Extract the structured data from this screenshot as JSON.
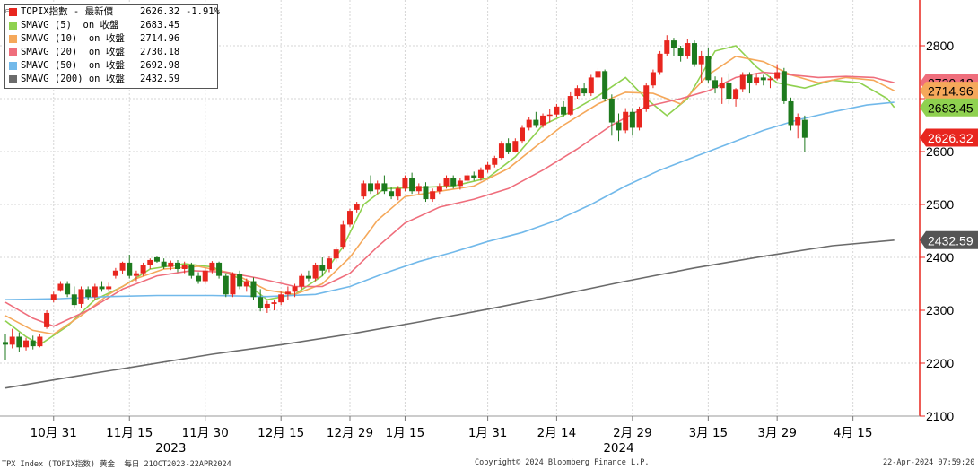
{
  "legend": {
    "items": [
      {
        "name": "TOPIX指數 - 最新價",
        "value": "2626.32",
        "change": "-1.91%",
        "color": "#e8261f"
      },
      {
        "name": "SMAVG (5)  on 收盤",
        "value": "2683.45",
        "color": "#8fd14f"
      },
      {
        "name": "SMAVG (10)  on 收盤",
        "value": "2714.96",
        "color": "#f5a85a"
      },
      {
        "name": "SMAVG (20)  on 收盤",
        "value": "2730.18",
        "color": "#ef6e7c"
      },
      {
        "name": "SMAVG (50)  on 收盤",
        "value": "2692.98",
        "color": "#72b9ea"
      },
      {
        "name": "SMAVG (200) on 收盤",
        "value": "2432.59",
        "color": "#6b6b6b"
      }
    ]
  },
  "footer": {
    "left": "TPX Index (TOPIX指数) 黄金  每日 21OCT2023-22APR2024",
    "center": "Copyright© 2024 Bloomberg Finance L.P.",
    "right": "22-Apr-2024 07:59:20"
  },
  "chart_data": {
    "type": "candlestick",
    "ylim": [
      2080,
      2880
    ],
    "yticks": [
      2100,
      2200,
      2300,
      2400,
      2500,
      2600,
      2700,
      2800
    ],
    "grid": true,
    "legend_position": "top-left",
    "axis_color": "#e8261f",
    "up_color": "#e8261f",
    "down_color": "#1e7a1e",
    "x_ticks": [
      {
        "label": "10月 31",
        "i": 7
      },
      {
        "label": "11月 15",
        "i": 18
      },
      {
        "label": "11月 30",
        "i": 29
      },
      {
        "label": "12月 15",
        "i": 40
      },
      {
        "label": "12月 29",
        "i": 50
      },
      {
        "label": "1月 15",
        "i": 58
      },
      {
        "label": "1月 31",
        "i": 70
      },
      {
        "label": "2月 14",
        "i": 80
      },
      {
        "label": "2月 29",
        "i": 91
      },
      {
        "label": "3月 15",
        "i": 102
      },
      {
        "label": "3月 29",
        "i": 112
      },
      {
        "label": "4月 15",
        "i": 123
      }
    ],
    "year_labels": [
      {
        "label": "2023",
        "i": 24
      },
      {
        "label": "2024",
        "i": 89
      }
    ],
    "last_labels": [
      {
        "value": "2730.18",
        "y": 2730.18,
        "color": "#ef6e7c",
        "text_color": "#000000"
      },
      {
        "value": "2714.96",
        "y": 2714.96,
        "color": "#f5a85a",
        "text_color": "#000000"
      },
      {
        "value": "2683.45",
        "y": 2683.45,
        "color": "#8fd14f",
        "text_color": "#000000"
      },
      {
        "value": "2626.32",
        "y": 2626.32,
        "color": "#e8261f",
        "text_color": "#ffffff"
      },
      {
        "value": "2432.59",
        "y": 2432.59,
        "color": "#555555",
        "text_color": "#ffffff"
      }
    ],
    "candles": [
      [
        2240,
        2255,
        2205,
        2235
      ],
      [
        2235,
        2265,
        2228,
        2250
      ],
      [
        2250,
        2258,
        2222,
        2230
      ],
      [
        2230,
        2248,
        2224,
        2243
      ],
      [
        2243,
        2252,
        2226,
        2232
      ],
      [
        2232,
        2255,
        2230,
        2250
      ],
      [
        2268,
        2300,
        2265,
        2295
      ],
      [
        2320,
        2335,
        2315,
        2330
      ],
      [
        2338,
        2355,
        2335,
        2350
      ],
      [
        2350,
        2355,
        2325,
        2330
      ],
      [
        2330,
        2345,
        2305,
        2310
      ],
      [
        2312,
        2345,
        2305,
        2340
      ],
      [
        2340,
        2345,
        2320,
        2325
      ],
      [
        2325,
        2350,
        2320,
        2345
      ],
      [
        2345,
        2355,
        2335,
        2340
      ],
      [
        2340,
        2352,
        2335,
        2345
      ],
      [
        2365,
        2380,
        2360,
        2375
      ],
      [
        2375,
        2392,
        2368,
        2390
      ],
      [
        2390,
        2405,
        2360,
        2365
      ],
      [
        2365,
        2375,
        2355,
        2370
      ],
      [
        2370,
        2390,
        2365,
        2385
      ],
      [
        2385,
        2398,
        2378,
        2395
      ],
      [
        2400,
        2403,
        2390,
        2392
      ],
      [
        2392,
        2398,
        2378,
        2382
      ],
      [
        2382,
        2394,
        2376,
        2390
      ],
      [
        2390,
        2395,
        2372,
        2378
      ],
      [
        2378,
        2392,
        2370,
        2386
      ],
      [
        2386,
        2390,
        2360,
        2365
      ],
      [
        2365,
        2372,
        2350,
        2355
      ],
      [
        2355,
        2380,
        2350,
        2375
      ],
      [
        2375,
        2393,
        2370,
        2390
      ],
      [
        2390,
        2392,
        2360,
        2365
      ],
      [
        2365,
        2368,
        2325,
        2330
      ],
      [
        2330,
        2372,
        2325,
        2368
      ],
      [
        2368,
        2375,
        2340,
        2345
      ],
      [
        2345,
        2360,
        2335,
        2355
      ],
      [
        2355,
        2362,
        2320,
        2325
      ],
      [
        2325,
        2340,
        2298,
        2305
      ],
      [
        2305,
        2318,
        2295,
        2312
      ],
      [
        2312,
        2320,
        2300,
        2315
      ],
      [
        2315,
        2335,
        2310,
        2330
      ],
      [
        2330,
        2345,
        2320,
        2335
      ],
      [
        2335,
        2350,
        2325,
        2345
      ],
      [
        2345,
        2370,
        2340,
        2365
      ],
      [
        2365,
        2375,
        2355,
        2360
      ],
      [
        2360,
        2390,
        2355,
        2385
      ],
      [
        2385,
        2400,
        2365,
        2375
      ],
      [
        2378,
        2402,
        2372,
        2398
      ],
      [
        2398,
        2420,
        2392,
        2415
      ],
      [
        2420,
        2470,
        2415,
        2462
      ],
      [
        2462,
        2492,
        2458,
        2488
      ],
      [
        2490,
        2505,
        2485,
        2500
      ],
      [
        2515,
        2545,
        2510,
        2540
      ],
      [
        2540,
        2555,
        2520,
        2525
      ],
      [
        2528,
        2545,
        2520,
        2540
      ],
      [
        2540,
        2555,
        2520,
        2525
      ],
      [
        2525,
        2532,
        2510,
        2515
      ],
      [
        2515,
        2535,
        2508,
        2530
      ],
      [
        2530,
        2555,
        2525,
        2550
      ],
      [
        2550,
        2560,
        2520,
        2525
      ],
      [
        2525,
        2540,
        2520,
        2535
      ],
      [
        2535,
        2542,
        2505,
        2510
      ],
      [
        2510,
        2530,
        2505,
        2525
      ],
      [
        2525,
        2540,
        2520,
        2535
      ],
      [
        2535,
        2555,
        2530,
        2550
      ],
      [
        2550,
        2555,
        2530,
        2535
      ],
      [
        2535,
        2550,
        2528,
        2545
      ],
      [
        2545,
        2560,
        2540,
        2555
      ],
      [
        2555,
        2562,
        2545,
        2550
      ],
      [
        2550,
        2570,
        2545,
        2565
      ],
      [
        2565,
        2580,
        2560,
        2575
      ],
      [
        2575,
        2592,
        2570,
        2588
      ],
      [
        2588,
        2620,
        2585,
        2615
      ],
      [
        2615,
        2625,
        2595,
        2600
      ],
      [
        2600,
        2625,
        2598,
        2620
      ],
      [
        2620,
        2650,
        2615,
        2645
      ],
      [
        2645,
        2665,
        2640,
        2660
      ],
      [
        2660,
        2675,
        2645,
        2650
      ],
      [
        2650,
        2672,
        2645,
        2668
      ],
      [
        2668,
        2680,
        2655,
        2670
      ],
      [
        2670,
        2690,
        2665,
        2685
      ],
      [
        2685,
        2695,
        2665,
        2670
      ],
      [
        2670,
        2712,
        2668,
        2705
      ],
      [
        2705,
        2725,
        2700,
        2720
      ],
      [
        2720,
        2730,
        2705,
        2710
      ],
      [
        2710,
        2745,
        2705,
        2740
      ],
      [
        2740,
        2758,
        2732,
        2752
      ],
      [
        2752,
        2755,
        2695,
        2700
      ],
      [
        2700,
        2708,
        2630,
        2655
      ],
      [
        2655,
        2672,
        2620,
        2640
      ],
      [
        2640,
        2682,
        2635,
        2675
      ],
      [
        2675,
        2682,
        2630,
        2645
      ],
      [
        2645,
        2685,
        2640,
        2680
      ],
      [
        2680,
        2730,
        2675,
        2725
      ],
      [
        2725,
        2755,
        2720,
        2750
      ],
      [
        2750,
        2790,
        2745,
        2785
      ],
      [
        2785,
        2820,
        2780,
        2810
      ],
      [
        2810,
        2815,
        2780,
        2795
      ],
      [
        2795,
        2800,
        2770,
        2780
      ],
      [
        2780,
        2812,
        2775,
        2805
      ],
      [
        2805,
        2810,
        2760,
        2765
      ],
      [
        2765,
        2790,
        2730,
        2780
      ],
      [
        2780,
        2795,
        2730,
        2735
      ],
      [
        2735,
        2742,
        2710,
        2720
      ],
      [
        2720,
        2740,
        2690,
        2730
      ],
      [
        2730,
        2748,
        2690,
        2700
      ],
      [
        2700,
        2720,
        2685,
        2718
      ],
      [
        2718,
        2750,
        2712,
        2745
      ],
      [
        2745,
        2750,
        2710,
        2730
      ],
      [
        2730,
        2748,
        2725,
        2740
      ],
      [
        2740,
        2745,
        2725,
        2735
      ],
      [
        2735,
        2742,
        2720,
        2738
      ],
      [
        2738,
        2765,
        2735,
        2750
      ],
      [
        2752,
        2758,
        2690,
        2695
      ],
      [
        2695,
        2702,
        2640,
        2650
      ],
      [
        2650,
        2672,
        2625,
        2665
      ],
      [
        2660,
        2668,
        2600,
        2626
      ]
    ],
    "series": [
      {
        "name": "SMAVG (5)  on 收盤",
        "color": "#8fd14f",
        "points": [
          [
            0,
            2280
          ],
          [
            3,
            2250
          ],
          [
            5,
            2235
          ],
          [
            9,
            2270
          ],
          [
            13,
            2320
          ],
          [
            17,
            2345
          ],
          [
            21,
            2378
          ],
          [
            26,
            2388
          ],
          [
            30,
            2382
          ],
          [
            34,
            2360
          ],
          [
            38,
            2320
          ],
          [
            42,
            2330
          ],
          [
            46,
            2365
          ],
          [
            49,
            2420
          ],
          [
            52,
            2500
          ],
          [
            55,
            2530
          ],
          [
            60,
            2532
          ],
          [
            65,
            2535
          ],
          [
            70,
            2550
          ],
          [
            74,
            2590
          ],
          [
            78,
            2650
          ],
          [
            82,
            2675
          ],
          [
            86,
            2705
          ],
          [
            90,
            2740
          ],
          [
            93,
            2700
          ],
          [
            96,
            2668
          ],
          [
            99,
            2700
          ],
          [
            103,
            2790
          ],
          [
            106,
            2800
          ],
          [
            109,
            2760
          ],
          [
            112,
            2730
          ],
          [
            116,
            2720
          ],
          [
            120,
            2735
          ],
          [
            124,
            2730
          ],
          [
            128,
            2700
          ],
          [
            129,
            2683.45
          ]
        ]
      },
      {
        "name": "SMAVG (10)  on 收盤",
        "color": "#f5a85a",
        "points": [
          [
            0,
            2290
          ],
          [
            4,
            2262
          ],
          [
            7,
            2255
          ],
          [
            11,
            2290
          ],
          [
            15,
            2330
          ],
          [
            19,
            2360
          ],
          [
            23,
            2378
          ],
          [
            28,
            2383
          ],
          [
            33,
            2370
          ],
          [
            38,
            2338
          ],
          [
            42,
            2330
          ],
          [
            46,
            2350
          ],
          [
            50,
            2400
          ],
          [
            54,
            2470
          ],
          [
            58,
            2515
          ],
          [
            63,
            2525
          ],
          [
            68,
            2535
          ],
          [
            73,
            2568
          ],
          [
            77,
            2610
          ],
          [
            81,
            2650
          ],
          [
            86,
            2690
          ],
          [
            90,
            2712
          ],
          [
            94,
            2710
          ],
          [
            98,
            2690
          ],
          [
            102,
            2745
          ],
          [
            106,
            2780
          ],
          [
            110,
            2770
          ],
          [
            114,
            2745
          ],
          [
            118,
            2730
          ],
          [
            122,
            2740
          ],
          [
            126,
            2735
          ],
          [
            129,
            2714.96
          ]
        ]
      },
      {
        "name": "SMAVG (20)  on 收盤",
        "color": "#ef6e7c",
        "points": [
          [
            0,
            2315
          ],
          [
            4,
            2285
          ],
          [
            7,
            2270
          ],
          [
            12,
            2300
          ],
          [
            17,
            2340
          ],
          [
            22,
            2365
          ],
          [
            27,
            2375
          ],
          [
            32,
            2372
          ],
          [
            37,
            2360
          ],
          [
            42,
            2345
          ],
          [
            46,
            2345
          ],
          [
            50,
            2370
          ],
          [
            54,
            2420
          ],
          [
            58,
            2465
          ],
          [
            63,
            2495
          ],
          [
            68,
            2510
          ],
          [
            73,
            2530
          ],
          [
            78,
            2565
          ],
          [
            83,
            2605
          ],
          [
            88,
            2650
          ],
          [
            93,
            2685
          ],
          [
            98,
            2700
          ],
          [
            102,
            2715
          ],
          [
            106,
            2740
          ],
          [
            110,
            2750
          ],
          [
            114,
            2745
          ],
          [
            118,
            2740
          ],
          [
            122,
            2742
          ],
          [
            126,
            2740
          ],
          [
            129,
            2730.18
          ]
        ]
      },
      {
        "name": "SMAVG (50)  on 收盤",
        "color": "#72b9ea",
        "points": [
          [
            0,
            2320
          ],
          [
            8,
            2322
          ],
          [
            15,
            2326
          ],
          [
            22,
            2328
          ],
          [
            30,
            2328
          ],
          [
            38,
            2326
          ],
          [
            45,
            2330
          ],
          [
            50,
            2345
          ],
          [
            55,
            2370
          ],
          [
            60,
            2392
          ],
          [
            65,
            2410
          ],
          [
            70,
            2430
          ],
          [
            75,
            2447
          ],
          [
            80,
            2470
          ],
          [
            85,
            2500
          ],
          [
            90,
            2535
          ],
          [
            95,
            2565
          ],
          [
            100,
            2590
          ],
          [
            105,
            2615
          ],
          [
            110,
            2640
          ],
          [
            115,
            2660
          ],
          [
            120,
            2675
          ],
          [
            125,
            2688
          ],
          [
            129,
            2692.98
          ]
        ]
      },
      {
        "name": "SMAVG (200) on 收盤",
        "color": "#6b6b6b",
        "points": [
          [
            0,
            2153
          ],
          [
            10,
            2175
          ],
          [
            20,
            2196
          ],
          [
            30,
            2217
          ],
          [
            40,
            2235
          ],
          [
            50,
            2255
          ],
          [
            60,
            2278
          ],
          [
            70,
            2302
          ],
          [
            80,
            2328
          ],
          [
            90,
            2355
          ],
          [
            100,
            2380
          ],
          [
            110,
            2402
          ],
          [
            120,
            2422
          ],
          [
            129,
            2432.59
          ]
        ]
      }
    ]
  }
}
